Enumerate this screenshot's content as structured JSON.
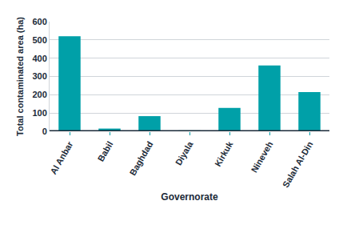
{
  "chart_data": {
    "type": "bar",
    "categories": [
      "Al Anbar",
      "Babil",
      "Baghdad",
      "Diyala",
      "Kirkuk",
      "Nineveh",
      "Salah Al-Din"
    ],
    "values": [
      520,
      15,
      83,
      5,
      128,
      360,
      215
    ],
    "color": "#00a0a8",
    "xlabel": "Governorate",
    "ylabel": "Total contaminated area (ha)",
    "ylim": [
      0,
      600
    ],
    "yticks": [
      0,
      100,
      200,
      300,
      400,
      500,
      600
    ],
    "grid": true
  }
}
